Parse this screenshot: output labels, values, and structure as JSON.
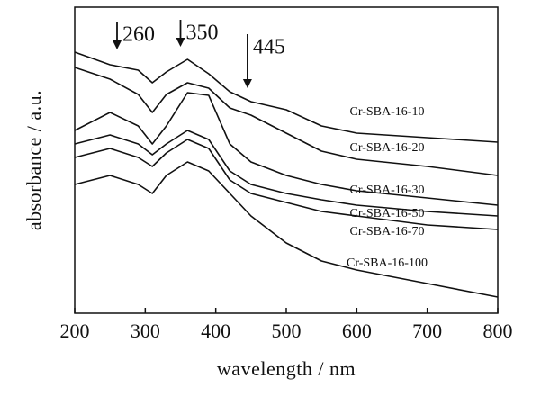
{
  "chart_data": {
    "type": "line",
    "xlabel": "wavelength / nm",
    "ylabel": "absorbance / a.u.",
    "x": [
      200,
      250,
      290,
      310,
      330,
      360,
      390,
      420,
      450,
      500,
      550,
      600,
      700,
      800
    ],
    "xlim": [
      200,
      800
    ],
    "xticks": [
      200,
      300,
      400,
      500,
      600,
      700,
      800
    ],
    "ylim": [
      0,
      340
    ],
    "series": [
      {
        "name": "Cr-SBA-16-10",
        "color": "#111111",
        "values": [
          290,
          276,
          270,
          256,
          268,
          282,
          266,
          246,
          235,
          226,
          208,
          200,
          195,
          190
        ]
      },
      {
        "name": "Cr-SBA-16-20",
        "color": "#111111",
        "values": [
          273,
          260,
          243,
          223,
          243,
          256,
          250,
          228,
          220,
          200,
          180,
          171,
          163,
          153
        ]
      },
      {
        "name": "Cr-SBA-16-30",
        "color": "#111111",
        "values": [
          203,
          223,
          208,
          188,
          208,
          245,
          242,
          188,
          168,
          153,
          143,
          136,
          128,
          120
        ]
      },
      {
        "name": "Cr-SBA-16-50",
        "color": "#111111",
        "values": [
          188,
          198,
          188,
          176,
          188,
          203,
          193,
          158,
          143,
          133,
          126,
          120,
          113,
          108
        ]
      },
      {
        "name": "Cr-SBA-16-70",
        "color": "#111111",
        "values": [
          173,
          183,
          173,
          163,
          178,
          193,
          183,
          148,
          133,
          123,
          113,
          108,
          98,
          93
        ]
      },
      {
        "name": "Cr-SBA-16-100",
        "color": "#111111",
        "values": [
          143,
          153,
          143,
          133,
          153,
          168,
          158,
          133,
          108,
          78,
          58,
          48,
          33,
          18
        ]
      }
    ],
    "annotations": [
      {
        "text": "260",
        "x": 260
      },
      {
        "text": "350",
        "x": 350
      },
      {
        "text": "445",
        "x": 445
      }
    ],
    "grid": false
  }
}
